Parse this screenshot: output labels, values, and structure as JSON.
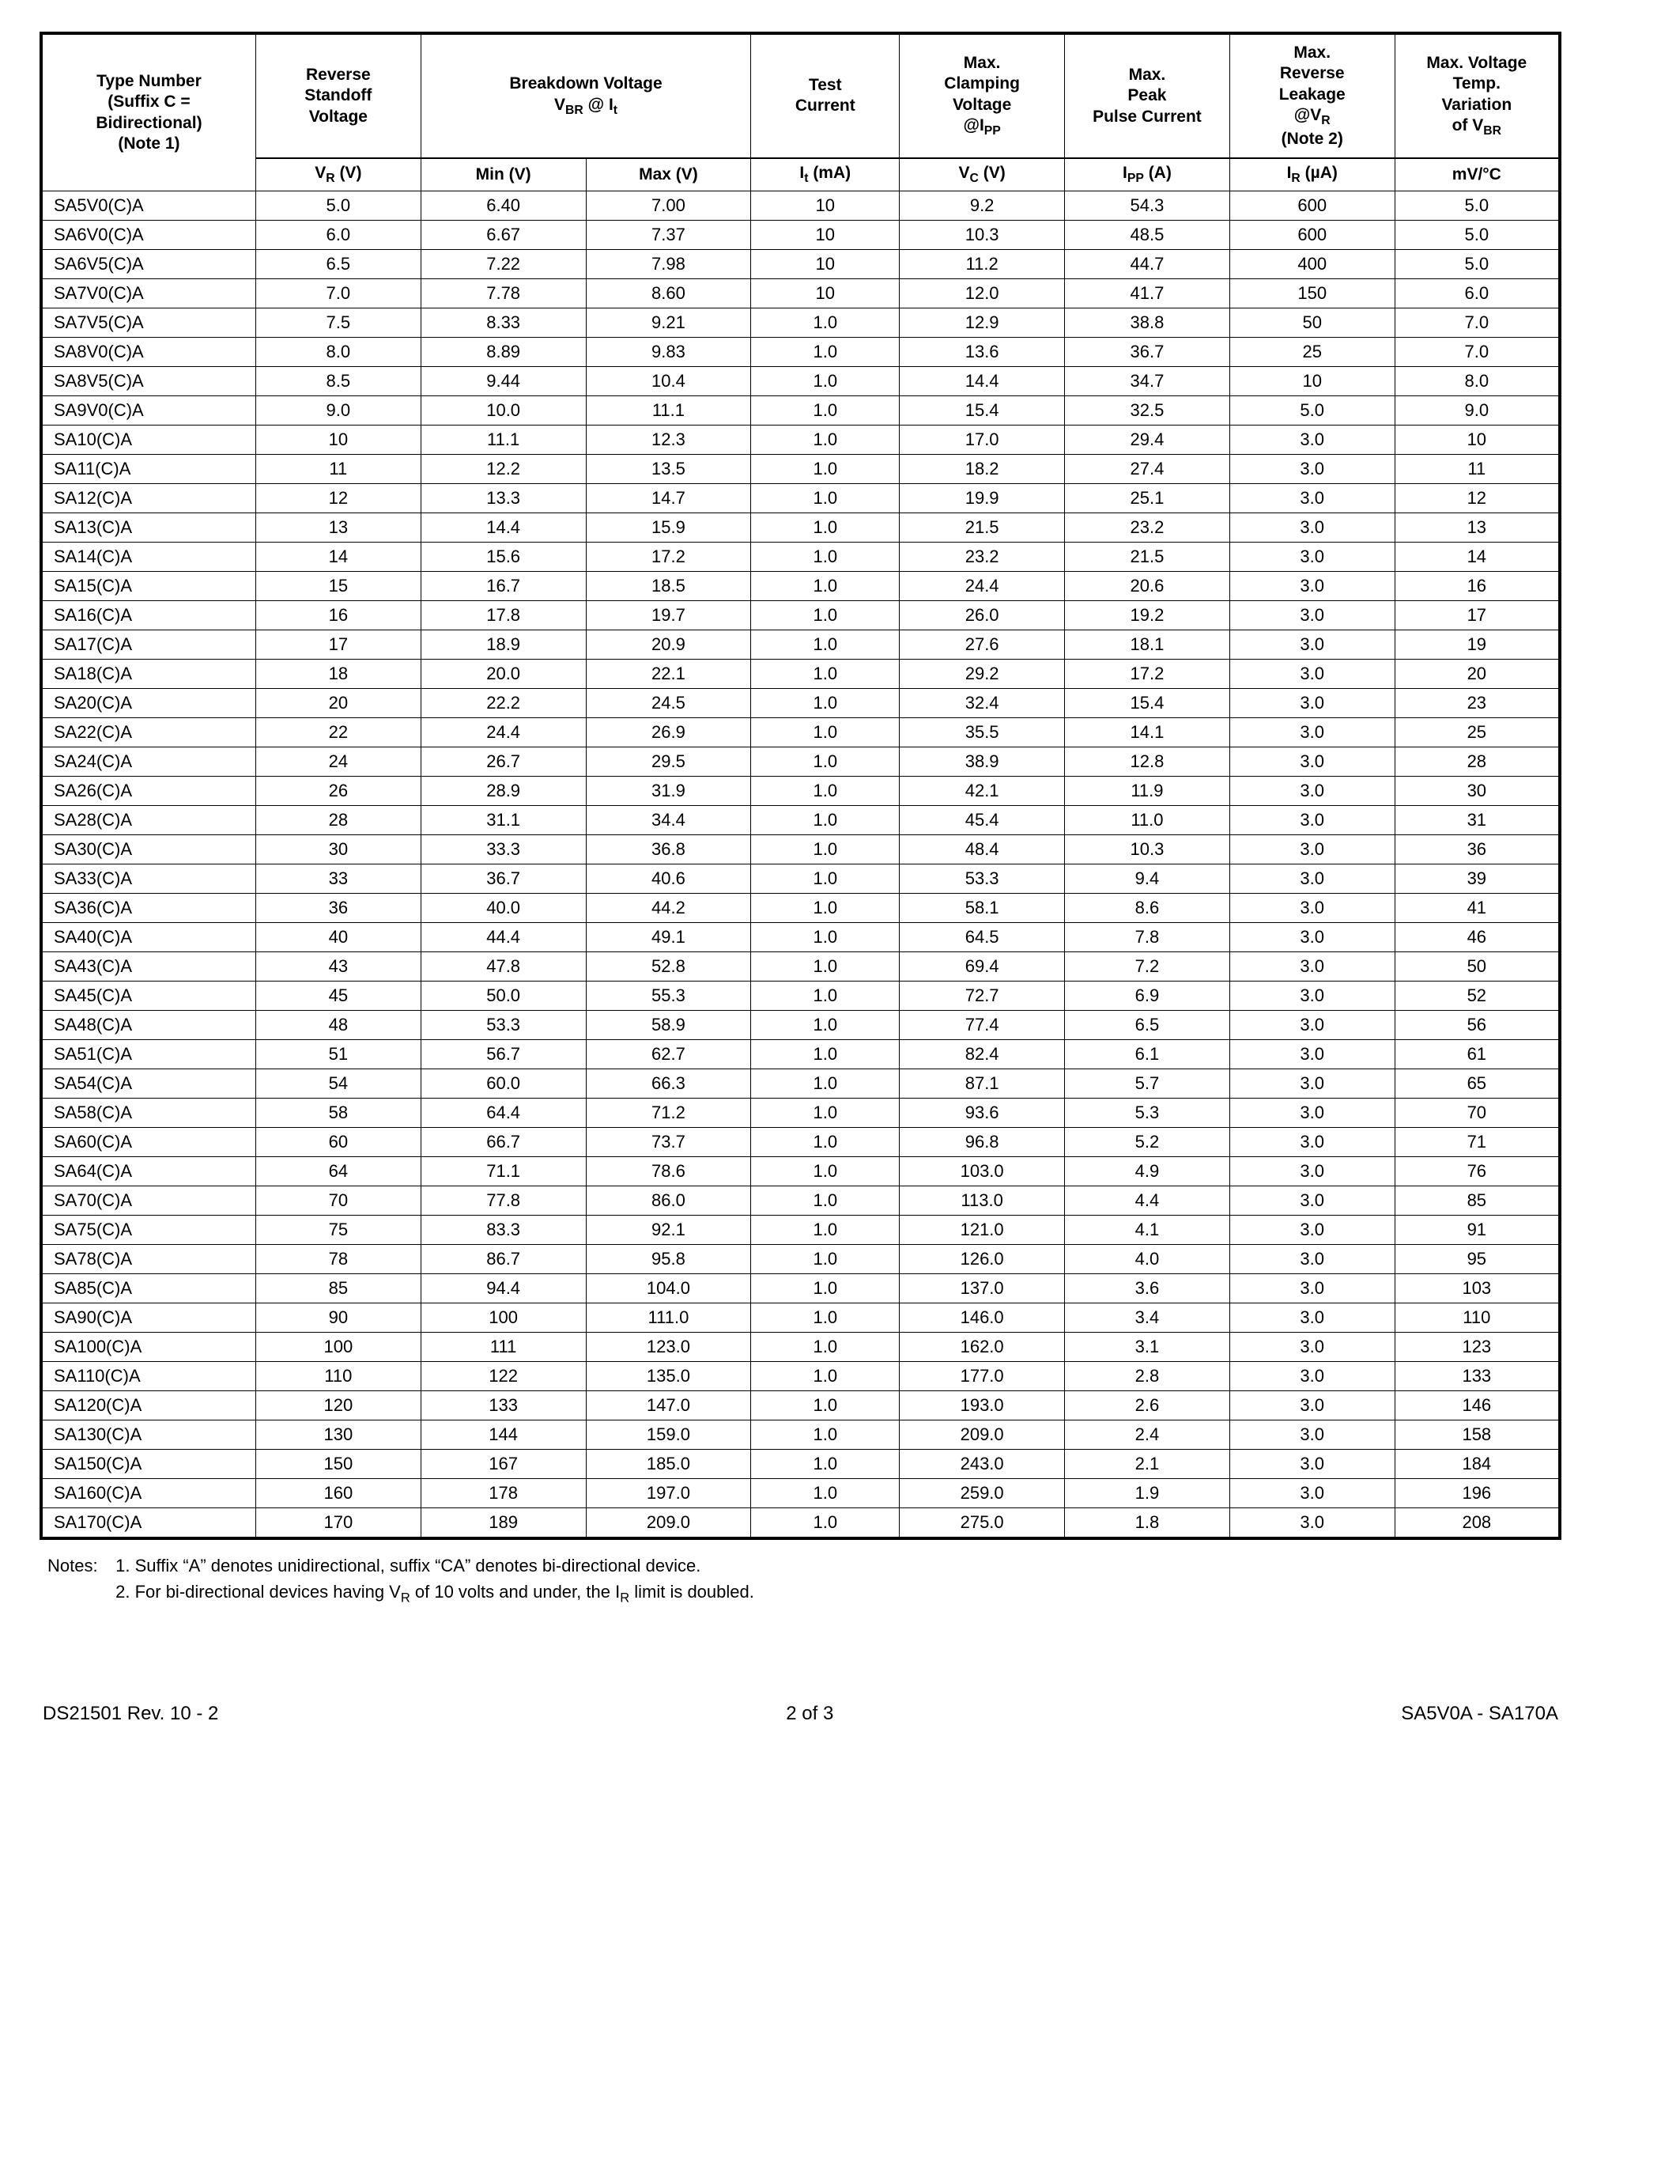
{
  "table": {
    "headers_top": [
      "Type Number (Suffix C = Bidirectional) (Note 1)",
      "Reverse Standoff Voltage",
      "Breakdown Voltage V_BR @ I_t",
      "Test Current",
      "Max. Clamping Voltage @I_PP",
      "Max. Peak Pulse Current",
      "Max. Reverse Leakage @V_R (Note 2)",
      "Max. Voltage Temp. Variation of V_BR"
    ],
    "headers_sub": [
      "V_R (V)",
      "Min (V)",
      "Max (V)",
      "I_t (mA)",
      "V_C (V)",
      "I_PP (A)",
      "I_R (µA)",
      "mV/°C"
    ],
    "col_widths_pct": [
      13,
      10,
      10,
      10,
      9,
      10,
      10,
      10,
      10
    ],
    "rows": [
      [
        "SA5V0(C)A",
        "5.0",
        "6.40",
        "7.00",
        "10",
        "9.2",
        "54.3",
        "600",
        "5.0"
      ],
      [
        "SA6V0(C)A",
        "6.0",
        "6.67",
        "7.37",
        "10",
        "10.3",
        "48.5",
        "600",
        "5.0"
      ],
      [
        "SA6V5(C)A",
        "6.5",
        "7.22",
        "7.98",
        "10",
        "11.2",
        "44.7",
        "400",
        "5.0"
      ],
      [
        "SA7V0(C)A",
        "7.0",
        "7.78",
        "8.60",
        "10",
        "12.0",
        "41.7",
        "150",
        "6.0"
      ],
      [
        "SA7V5(C)A",
        "7.5",
        "8.33",
        "9.21",
        "1.0",
        "12.9",
        "38.8",
        "50",
        "7.0"
      ],
      [
        "SA8V0(C)A",
        "8.0",
        "8.89",
        "9.83",
        "1.0",
        "13.6",
        "36.7",
        "25",
        "7.0"
      ],
      [
        "SA8V5(C)A",
        "8.5",
        "9.44",
        "10.4",
        "1.0",
        "14.4",
        "34.7",
        "10",
        "8.0"
      ],
      [
        "SA9V0(C)A",
        "9.0",
        "10.0",
        "11.1",
        "1.0",
        "15.4",
        "32.5",
        "5.0",
        "9.0"
      ],
      [
        "SA10(C)A",
        "10",
        "11.1",
        "12.3",
        "1.0",
        "17.0",
        "29.4",
        "3.0",
        "10"
      ],
      [
        "SA11(C)A",
        "11",
        "12.2",
        "13.5",
        "1.0",
        "18.2",
        "27.4",
        "3.0",
        "11"
      ],
      [
        "SA12(C)A",
        "12",
        "13.3",
        "14.7",
        "1.0",
        "19.9",
        "25.1",
        "3.0",
        "12"
      ],
      [
        "SA13(C)A",
        "13",
        "14.4",
        "15.9",
        "1.0",
        "21.5",
        "23.2",
        "3.0",
        "13"
      ],
      [
        "SA14(C)A",
        "14",
        "15.6",
        "17.2",
        "1.0",
        "23.2",
        "21.5",
        "3.0",
        "14"
      ],
      [
        "SA15(C)A",
        "15",
        "16.7",
        "18.5",
        "1.0",
        "24.4",
        "20.6",
        "3.0",
        "16"
      ],
      [
        "SA16(C)A",
        "16",
        "17.8",
        "19.7",
        "1.0",
        "26.0",
        "19.2",
        "3.0",
        "17"
      ],
      [
        "SA17(C)A",
        "17",
        "18.9",
        "20.9",
        "1.0",
        "27.6",
        "18.1",
        "3.0",
        "19"
      ],
      [
        "SA18(C)A",
        "18",
        "20.0",
        "22.1",
        "1.0",
        "29.2",
        "17.2",
        "3.0",
        "20"
      ],
      [
        "SA20(C)A",
        "20",
        "22.2",
        "24.5",
        "1.0",
        "32.4",
        "15.4",
        "3.0",
        "23"
      ],
      [
        "SA22(C)A",
        "22",
        "24.4",
        "26.9",
        "1.0",
        "35.5",
        "14.1",
        "3.0",
        "25"
      ],
      [
        "SA24(C)A",
        "24",
        "26.7",
        "29.5",
        "1.0",
        "38.9",
        "12.8",
        "3.0",
        "28"
      ],
      [
        "SA26(C)A",
        "26",
        "28.9",
        "31.9",
        "1.0",
        "42.1",
        "11.9",
        "3.0",
        "30"
      ],
      [
        "SA28(C)A",
        "28",
        "31.1",
        "34.4",
        "1.0",
        "45.4",
        "11.0",
        "3.0",
        "31"
      ],
      [
        "SA30(C)A",
        "30",
        "33.3",
        "36.8",
        "1.0",
        "48.4",
        "10.3",
        "3.0",
        "36"
      ],
      [
        "SA33(C)A",
        "33",
        "36.7",
        "40.6",
        "1.0",
        "53.3",
        "9.4",
        "3.0",
        "39"
      ],
      [
        "SA36(C)A",
        "36",
        "40.0",
        "44.2",
        "1.0",
        "58.1",
        "8.6",
        "3.0",
        "41"
      ],
      [
        "SA40(C)A",
        "40",
        "44.4",
        "49.1",
        "1.0",
        "64.5",
        "7.8",
        "3.0",
        "46"
      ],
      [
        "SA43(C)A",
        "43",
        "47.8",
        "52.8",
        "1.0",
        "69.4",
        "7.2",
        "3.0",
        "50"
      ],
      [
        "SA45(C)A",
        "45",
        "50.0",
        "55.3",
        "1.0",
        "72.7",
        "6.9",
        "3.0",
        "52"
      ],
      [
        "SA48(C)A",
        "48",
        "53.3",
        "58.9",
        "1.0",
        "77.4",
        "6.5",
        "3.0",
        "56"
      ],
      [
        "SA51(C)A",
        "51",
        "56.7",
        "62.7",
        "1.0",
        "82.4",
        "6.1",
        "3.0",
        "61"
      ],
      [
        "SA54(C)A",
        "54",
        "60.0",
        "66.3",
        "1.0",
        "87.1",
        "5.7",
        "3.0",
        "65"
      ],
      [
        "SA58(C)A",
        "58",
        "64.4",
        "71.2",
        "1.0",
        "93.6",
        "5.3",
        "3.0",
        "70"
      ],
      [
        "SA60(C)A",
        "60",
        "66.7",
        "73.7",
        "1.0",
        "96.8",
        "5.2",
        "3.0",
        "71"
      ],
      [
        "SA64(C)A",
        "64",
        "71.1",
        "78.6",
        "1.0",
        "103.0",
        "4.9",
        "3.0",
        "76"
      ],
      [
        "SA70(C)A",
        "70",
        "77.8",
        "86.0",
        "1.0",
        "113.0",
        "4.4",
        "3.0",
        "85"
      ],
      [
        "SA75(C)A",
        "75",
        "83.3",
        "92.1",
        "1.0",
        "121.0",
        "4.1",
        "3.0",
        "91"
      ],
      [
        "SA78(C)A",
        "78",
        "86.7",
        "95.8",
        "1.0",
        "126.0",
        "4.0",
        "3.0",
        "95"
      ],
      [
        "SA85(C)A",
        "85",
        "94.4",
        "104.0",
        "1.0",
        "137.0",
        "3.6",
        "3.0",
        "103"
      ],
      [
        "SA90(C)A",
        "90",
        "100",
        "111.0",
        "1.0",
        "146.0",
        "3.4",
        "3.0",
        "110"
      ],
      [
        "SA100(C)A",
        "100",
        "111",
        "123.0",
        "1.0",
        "162.0",
        "3.1",
        "3.0",
        "123"
      ],
      [
        "SA110(C)A",
        "110",
        "122",
        "135.0",
        "1.0",
        "177.0",
        "2.8",
        "3.0",
        "133"
      ],
      [
        "SA120(C)A",
        "120",
        "133",
        "147.0",
        "1.0",
        "193.0",
        "2.6",
        "3.0",
        "146"
      ],
      [
        "SA130(C)A",
        "130",
        "144",
        "159.0",
        "1.0",
        "209.0",
        "2.4",
        "3.0",
        "158"
      ],
      [
        "SA150(C)A",
        "150",
        "167",
        "185.0",
        "1.0",
        "243.0",
        "2.1",
        "3.0",
        "184"
      ],
      [
        "SA160(C)A",
        "160",
        "178",
        "197.0",
        "1.0",
        "259.0",
        "1.9",
        "3.0",
        "196"
      ],
      [
        "SA170(C)A",
        "170",
        "189",
        "209.0",
        "1.0",
        "275.0",
        "1.8",
        "3.0",
        "208"
      ]
    ]
  },
  "notes": {
    "label": "Notes:",
    "items": [
      "1. Suffix \"A\" denotes unidirectional, suffix \"CA\" denotes bi-directional device.",
      "2. For bi-directional devices having V_R of 10 volts and under, the I_R limit is doubled."
    ]
  },
  "footer": {
    "left": "DS21501 Rev. 10 - 2",
    "center": "2 of 3",
    "right": "SA5V0A - SA170A"
  }
}
